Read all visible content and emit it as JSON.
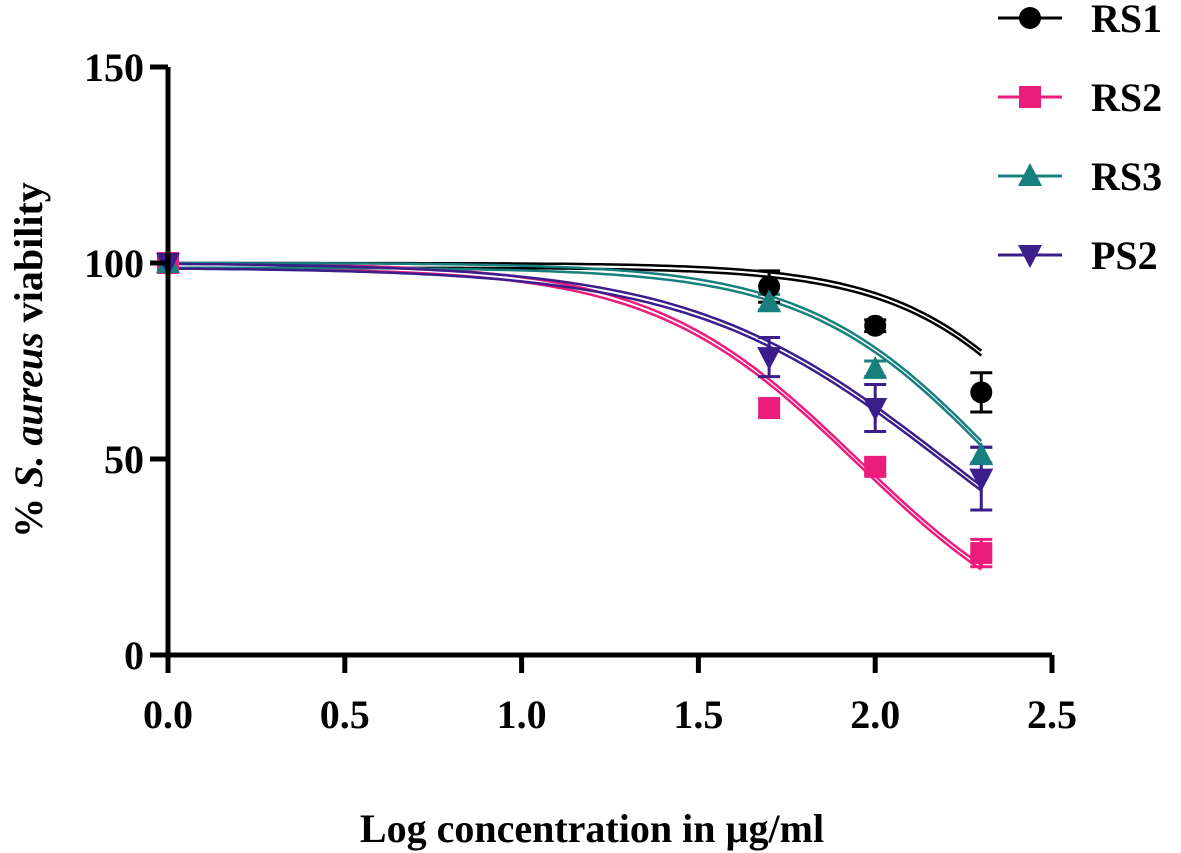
{
  "chart_data": {
    "type": "scatter",
    "xlabel": "Log concentration in µg/ml",
    "ylabel_parts": [
      "% ",
      "S. aureus",
      " viability"
    ],
    "xlim": [
      0,
      2.5
    ],
    "ylim": [
      0,
      150
    ],
    "xticks": [
      0.0,
      0.5,
      1.0,
      1.5,
      2.0,
      2.5
    ],
    "xtick_labels": [
      "0.0",
      "0.5",
      "1.0",
      "1.5",
      "2.0",
      "2.5"
    ],
    "yticks": [
      0,
      50,
      100,
      150
    ],
    "ytick_labels": [
      "0",
      "50",
      "100",
      "150"
    ],
    "legend_position": "top-right",
    "grid": false,
    "series": [
      {
        "name": "RS1",
        "color": "#000000",
        "marker": "circle",
        "x": [
          0,
          1.7,
          2.0,
          2.3
        ],
        "y": [
          100,
          94,
          84,
          67
        ],
        "err": [
          0,
          4,
          1.5,
          5
        ],
        "fit_ic50_log": 2.6,
        "fit_hill": 1.8
      },
      {
        "name": "RS2",
        "color": "#ec1c7c",
        "marker": "square",
        "x": [
          0,
          1.7,
          2.0,
          2.3
        ],
        "y": [
          100,
          63,
          48,
          26
        ],
        "err": [
          0,
          2,
          2,
          3.5
        ],
        "fit_ic50_log": 1.95,
        "fit_hill": 1.5
      },
      {
        "name": "RS3",
        "color": "#17807e",
        "marker": "triangle-up",
        "x": [
          0,
          1.7,
          2.0,
          2.3
        ],
        "y": [
          100,
          90,
          73,
          51
        ],
        "err": [
          0,
          2,
          2,
          2
        ],
        "fit_ic50_log": 2.35,
        "fit_hill": 1.6
      },
      {
        "name": "PS2",
        "color": "#3b1d8c",
        "marker": "triangle-down",
        "x": [
          0,
          1.7,
          2.0,
          2.3
        ],
        "y": [
          100,
          76,
          63,
          45
        ],
        "err": [
          0,
          5,
          6,
          8
        ],
        "fit_ic50_log": 2.2,
        "fit_hill": 1.2
      }
    ]
  }
}
